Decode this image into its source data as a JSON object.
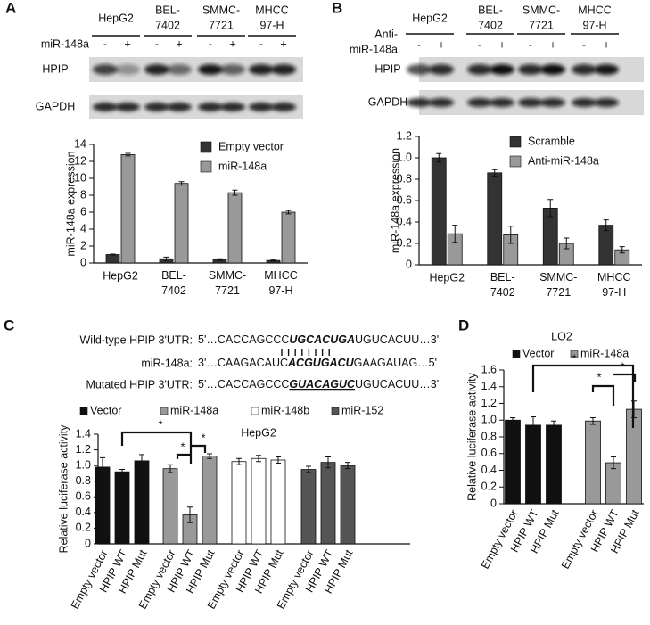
{
  "panels": [
    "A",
    "B",
    "C",
    "D"
  ],
  "blots": [
    {
      "cell_lines": [
        "HepG2",
        "BEL-\n7402",
        "SMMC-\n7721",
        "MHCC\n97-H"
      ],
      "treatment": "miR-148a",
      "signs": [
        "-",
        "+"
      ],
      "rows": [
        "HPIP",
        "GAPDH"
      ]
    },
    {
      "cell_lines": [
        "HepG2",
        "BEL-\n7402",
        "SMMC-\n7721",
        "MHCC\n97-H"
      ],
      "treatment": "Anti-\nmiR-148a",
      "signs": [
        "-",
        "+"
      ],
      "rows": [
        "HPIP",
        "GAPDH"
      ]
    }
  ],
  "sequences": [
    {
      "label": "Wild-type HPIP 3'UTR:",
      "parts": [
        "5'…CACCAGCCC",
        "UGCACUGA",
        "UGUCACUU…3'"
      ]
    },
    {
      "label": "miR-148a:",
      "parts": [
        "3'…CAAGACAUC",
        "ACGUGACU",
        "GAAGAUAG…5'"
      ]
    },
    {
      "label": "Mutated HPIP 3'UTR:",
      "parts": [
        "5'…CACCAGCCC",
        "GUACAGUC",
        "UGUCACUU…3'"
      ]
    }
  ],
  "chart_data": [
    {
      "type": "bar",
      "ylabel": "miR-148a expression",
      "categories": [
        "HepG2",
        "BEL-\n7402",
        "SMMC-\n7721",
        "MHCC\n97-H"
      ],
      "series": [
        {
          "name": "Empty vector",
          "color": "#333333",
          "values": [
            1.0,
            0.5,
            0.4,
            0.3
          ],
          "errors": [
            0.05,
            0.2,
            0.1,
            0.05
          ]
        },
        {
          "name": "miR-148a",
          "color": "#999999",
          "values": [
            12.8,
            9.4,
            8.3,
            6.0
          ],
          "errors": [
            0.15,
            0.2,
            0.3,
            0.2
          ]
        }
      ],
      "ylim": [
        0,
        14
      ],
      "yticks": [
        0,
        2,
        4,
        6,
        8,
        10,
        12,
        14
      ]
    },
    {
      "type": "bar",
      "ylabel": "miR-148a expression",
      "categories": [
        "HepG2",
        "BEL-\n7402",
        "SMMC-\n7721",
        "MHCC\n97-H"
      ],
      "series": [
        {
          "name": "Scramble",
          "color": "#333333",
          "values": [
            1.0,
            0.86,
            0.53,
            0.37
          ],
          "errors": [
            0.04,
            0.03,
            0.08,
            0.05
          ]
        },
        {
          "name": "Anti-miR-148a",
          "color": "#999999",
          "values": [
            0.29,
            0.28,
            0.2,
            0.14
          ],
          "errors": [
            0.08,
            0.08,
            0.05,
            0.03
          ]
        }
      ],
      "ylim": [
        0,
        1.2
      ],
      "yticks": [
        0,
        0.2,
        0.4,
        0.6,
        0.8,
        {
          "value": 1,
          "label": "1.0"
        },
        1.2
      ]
    },
    {
      "type": "bar",
      "title": "HepG2",
      "ylabel": "Relative luciferase activity",
      "categories": [
        "Empty vector",
        "HPIP WT",
        "HPIP Mut"
      ],
      "series": [
        {
          "name": "Vector",
          "color": "#111111",
          "values": [
            0.98,
            0.92,
            1.06
          ],
          "errors": [
            0.12,
            0.03,
            0.08
          ]
        },
        {
          "name": "miR-148a",
          "color": "#999999",
          "values": [
            0.96,
            0.37,
            1.12
          ],
          "errors": [
            0.05,
            0.1,
            0.03
          ]
        },
        {
          "name": "miR-148b",
          "color": "#ffffff",
          "values": [
            1.05,
            1.09,
            1.07
          ],
          "errors": [
            0.04,
            0.04,
            0.04
          ]
        },
        {
          "name": "miR-152",
          "color": "#555555",
          "values": [
            0.95,
            1.04,
            1.0
          ],
          "errors": [
            0.04,
            0.07,
            0.04
          ]
        }
      ],
      "ylim": [
        0,
        1.4
      ],
      "yticks": [
        0,
        0.2,
        0.4,
        0.6,
        0.8,
        {
          "value": 1,
          "label": "1.0"
        },
        1.2,
        1.4
      ],
      "annotations": [
        "*",
        "*",
        "*"
      ]
    },
    {
      "type": "bar",
      "title": "LO2",
      "ylabel": "Relative luciferase activity",
      "categories": [
        "Empty vector",
        "HPIP WT",
        "HPIP Mut"
      ],
      "series": [
        {
          "name": "Vector",
          "color": "#111111",
          "values": [
            1.0,
            0.94,
            0.94
          ],
          "errors": [
            0.03,
            0.1,
            0.05
          ]
        },
        {
          "name": "miR-148a",
          "color": "#999999",
          "values": [
            0.99,
            0.49,
            1.13
          ],
          "errors": [
            0.04,
            0.07,
            0.1
          ]
        }
      ],
      "ylim": [
        0,
        1.6
      ],
      "yticks": [
        0,
        0.2,
        0.4,
        0.6,
        0.8,
        {
          "value": 1,
          "label": "1.0"
        },
        1.2,
        1.4,
        1.6
      ],
      "annotations": [
        "*",
        "*",
        "*"
      ]
    }
  ]
}
